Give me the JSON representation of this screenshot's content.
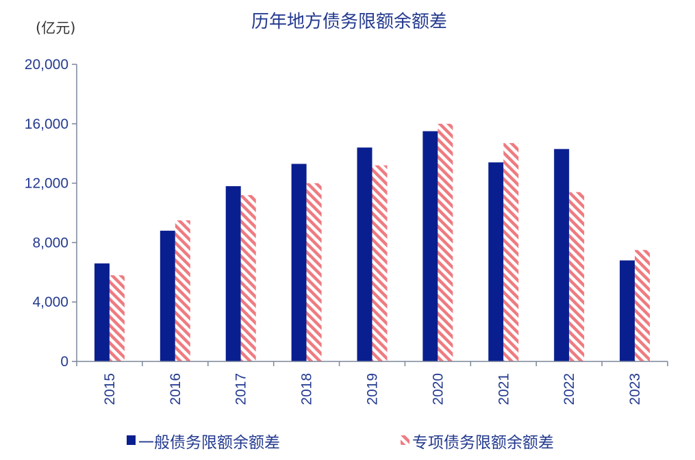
{
  "chart_data": {
    "type": "bar",
    "title": "历年地方债务限额余额差",
    "unit_label": "(亿元)",
    "categories": [
      "2015",
      "2016",
      "2017",
      "2018",
      "2019",
      "2020",
      "2021",
      "2022",
      "2023"
    ],
    "series": [
      {
        "name": "一般债务限额余额差",
        "values": [
          6600,
          8800,
          11800,
          13300,
          14400,
          15500,
          13400,
          14300,
          6800
        ],
        "color": "#0a1f8f",
        "pattern": "solid"
      },
      {
        "name": "专项债务限额余额差",
        "values": [
          5800,
          9500,
          11200,
          12000,
          13200,
          16000,
          14700,
          11400,
          7500
        ],
        "color": "#ee7b80",
        "pattern": "diagonal-stripes"
      }
    ],
    "ylim": [
      0,
      20000
    ],
    "yticks": [
      0,
      4000,
      8000,
      12000,
      16000,
      20000
    ],
    "ytick_labels": [
      "0",
      "4,000",
      "8,000",
      "12,000",
      "16,000",
      "20,000"
    ],
    "grid": false,
    "legend_position": "bottom"
  }
}
